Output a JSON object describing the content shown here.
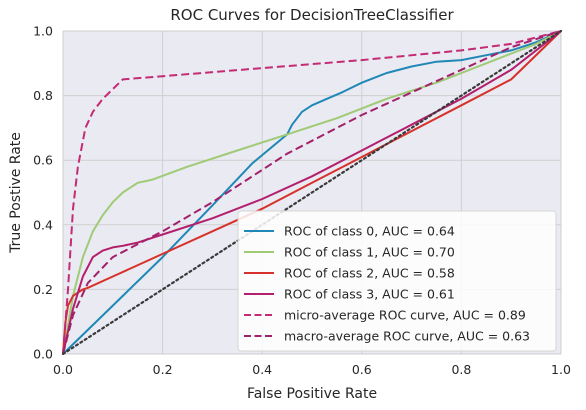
{
  "chart_data": {
    "type": "line",
    "title": "ROC Curves for DecisionTreeClassifier",
    "xlabel": "False Positive Rate",
    "ylabel": "True Postive Rate",
    "xlim": [
      0,
      1
    ],
    "ylim": [
      0,
      1
    ],
    "x_ticks": [
      "0.0",
      "0.2",
      "0.4",
      "0.6",
      "0.8",
      "1.0"
    ],
    "y_ticks": [
      "0.0",
      "0.2",
      "0.4",
      "0.6",
      "0.8",
      "1.0"
    ],
    "grid": true,
    "legend_position": "lower-right",
    "series": [
      {
        "name": "ROC of class 0, AUC = 0.64",
        "color": "#1f88b7",
        "dash": "solid",
        "x": [
          0,
          0.1,
          0.2,
          0.3,
          0.38,
          0.45,
          0.46,
          0.48,
          0.5,
          0.53,
          0.56,
          0.6,
          0.65,
          0.7,
          0.75,
          0.8,
          0.85,
          0.9,
          0.95,
          1.0
        ],
        "y": [
          0,
          0.15,
          0.3,
          0.46,
          0.59,
          0.68,
          0.71,
          0.75,
          0.77,
          0.79,
          0.81,
          0.84,
          0.87,
          0.89,
          0.905,
          0.91,
          0.925,
          0.94,
          0.965,
          1.0
        ]
      },
      {
        "name": "ROC of class 1, AUC = 0.70",
        "color": "#9fcb76",
        "dash": "solid",
        "x": [
          0,
          0.02,
          0.04,
          0.06,
          0.08,
          0.1,
          0.12,
          0.15,
          0.18,
          0.25,
          0.35,
          0.45,
          0.55,
          0.65,
          0.75,
          0.85,
          0.95,
          1.0
        ],
        "y": [
          0,
          0.18,
          0.3,
          0.38,
          0.43,
          0.47,
          0.5,
          0.53,
          0.54,
          0.58,
          0.63,
          0.68,
          0.73,
          0.79,
          0.84,
          0.9,
          0.96,
          1.0
        ]
      },
      {
        "name": "ROC of class 2, AUC = 0.58",
        "color": "#d6312a",
        "dash": "solid",
        "x": [
          0,
          0.005,
          0.01,
          0.02,
          0.03,
          0.04,
          0.05,
          0.1,
          0.2,
          0.3,
          0.4,
          0.5,
          0.6,
          0.7,
          0.8,
          0.9,
          1.0
        ],
        "y": [
          0,
          0.1,
          0.15,
          0.18,
          0.19,
          0.2,
          0.205,
          0.24,
          0.31,
          0.38,
          0.45,
          0.53,
          0.61,
          0.69,
          0.77,
          0.85,
          1.0
        ]
      },
      {
        "name": "ROC of class 3, AUC = 0.61",
        "color": "#b31f6d",
        "dash": "solid",
        "x": [
          0,
          0.02,
          0.04,
          0.06,
          0.08,
          0.1,
          0.12,
          0.15,
          0.2,
          0.3,
          0.4,
          0.5,
          0.6,
          0.7,
          0.8,
          0.9,
          1.0
        ],
        "y": [
          0,
          0.14,
          0.24,
          0.3,
          0.32,
          0.33,
          0.335,
          0.345,
          0.37,
          0.42,
          0.48,
          0.55,
          0.63,
          0.71,
          0.79,
          0.88,
          1.0
        ]
      },
      {
        "name": "micro-average ROC curve, AUC = 0.89",
        "color": "#c42b74",
        "dash": "dashed",
        "x": [
          0,
          0.01,
          0.02,
          0.03,
          0.045,
          0.06,
          0.08,
          0.1,
          0.12,
          0.2,
          0.4,
          0.6,
          0.8,
          0.9,
          1.0
        ],
        "y": [
          0,
          0.2,
          0.45,
          0.58,
          0.7,
          0.75,
          0.79,
          0.82,
          0.85,
          0.86,
          0.885,
          0.91,
          0.94,
          0.96,
          1.0
        ]
      },
      {
        "name": "macro-average ROC curve, AUC = 0.63",
        "color": "#a1216a",
        "dash": "dashed",
        "x": [
          0,
          0.02,
          0.05,
          0.1,
          0.2,
          0.3,
          0.4,
          0.45,
          0.5,
          0.6,
          0.7,
          0.8,
          0.9,
          1.0
        ],
        "y": [
          0,
          0.12,
          0.22,
          0.3,
          0.38,
          0.47,
          0.57,
          0.62,
          0.66,
          0.74,
          0.81,
          0.88,
          0.95,
          1.0
        ]
      },
      {
        "name": "",
        "color": "#3a3a3a",
        "dash": "dotted",
        "x": [
          0,
          1
        ],
        "y": [
          0,
          1
        ]
      }
    ]
  }
}
